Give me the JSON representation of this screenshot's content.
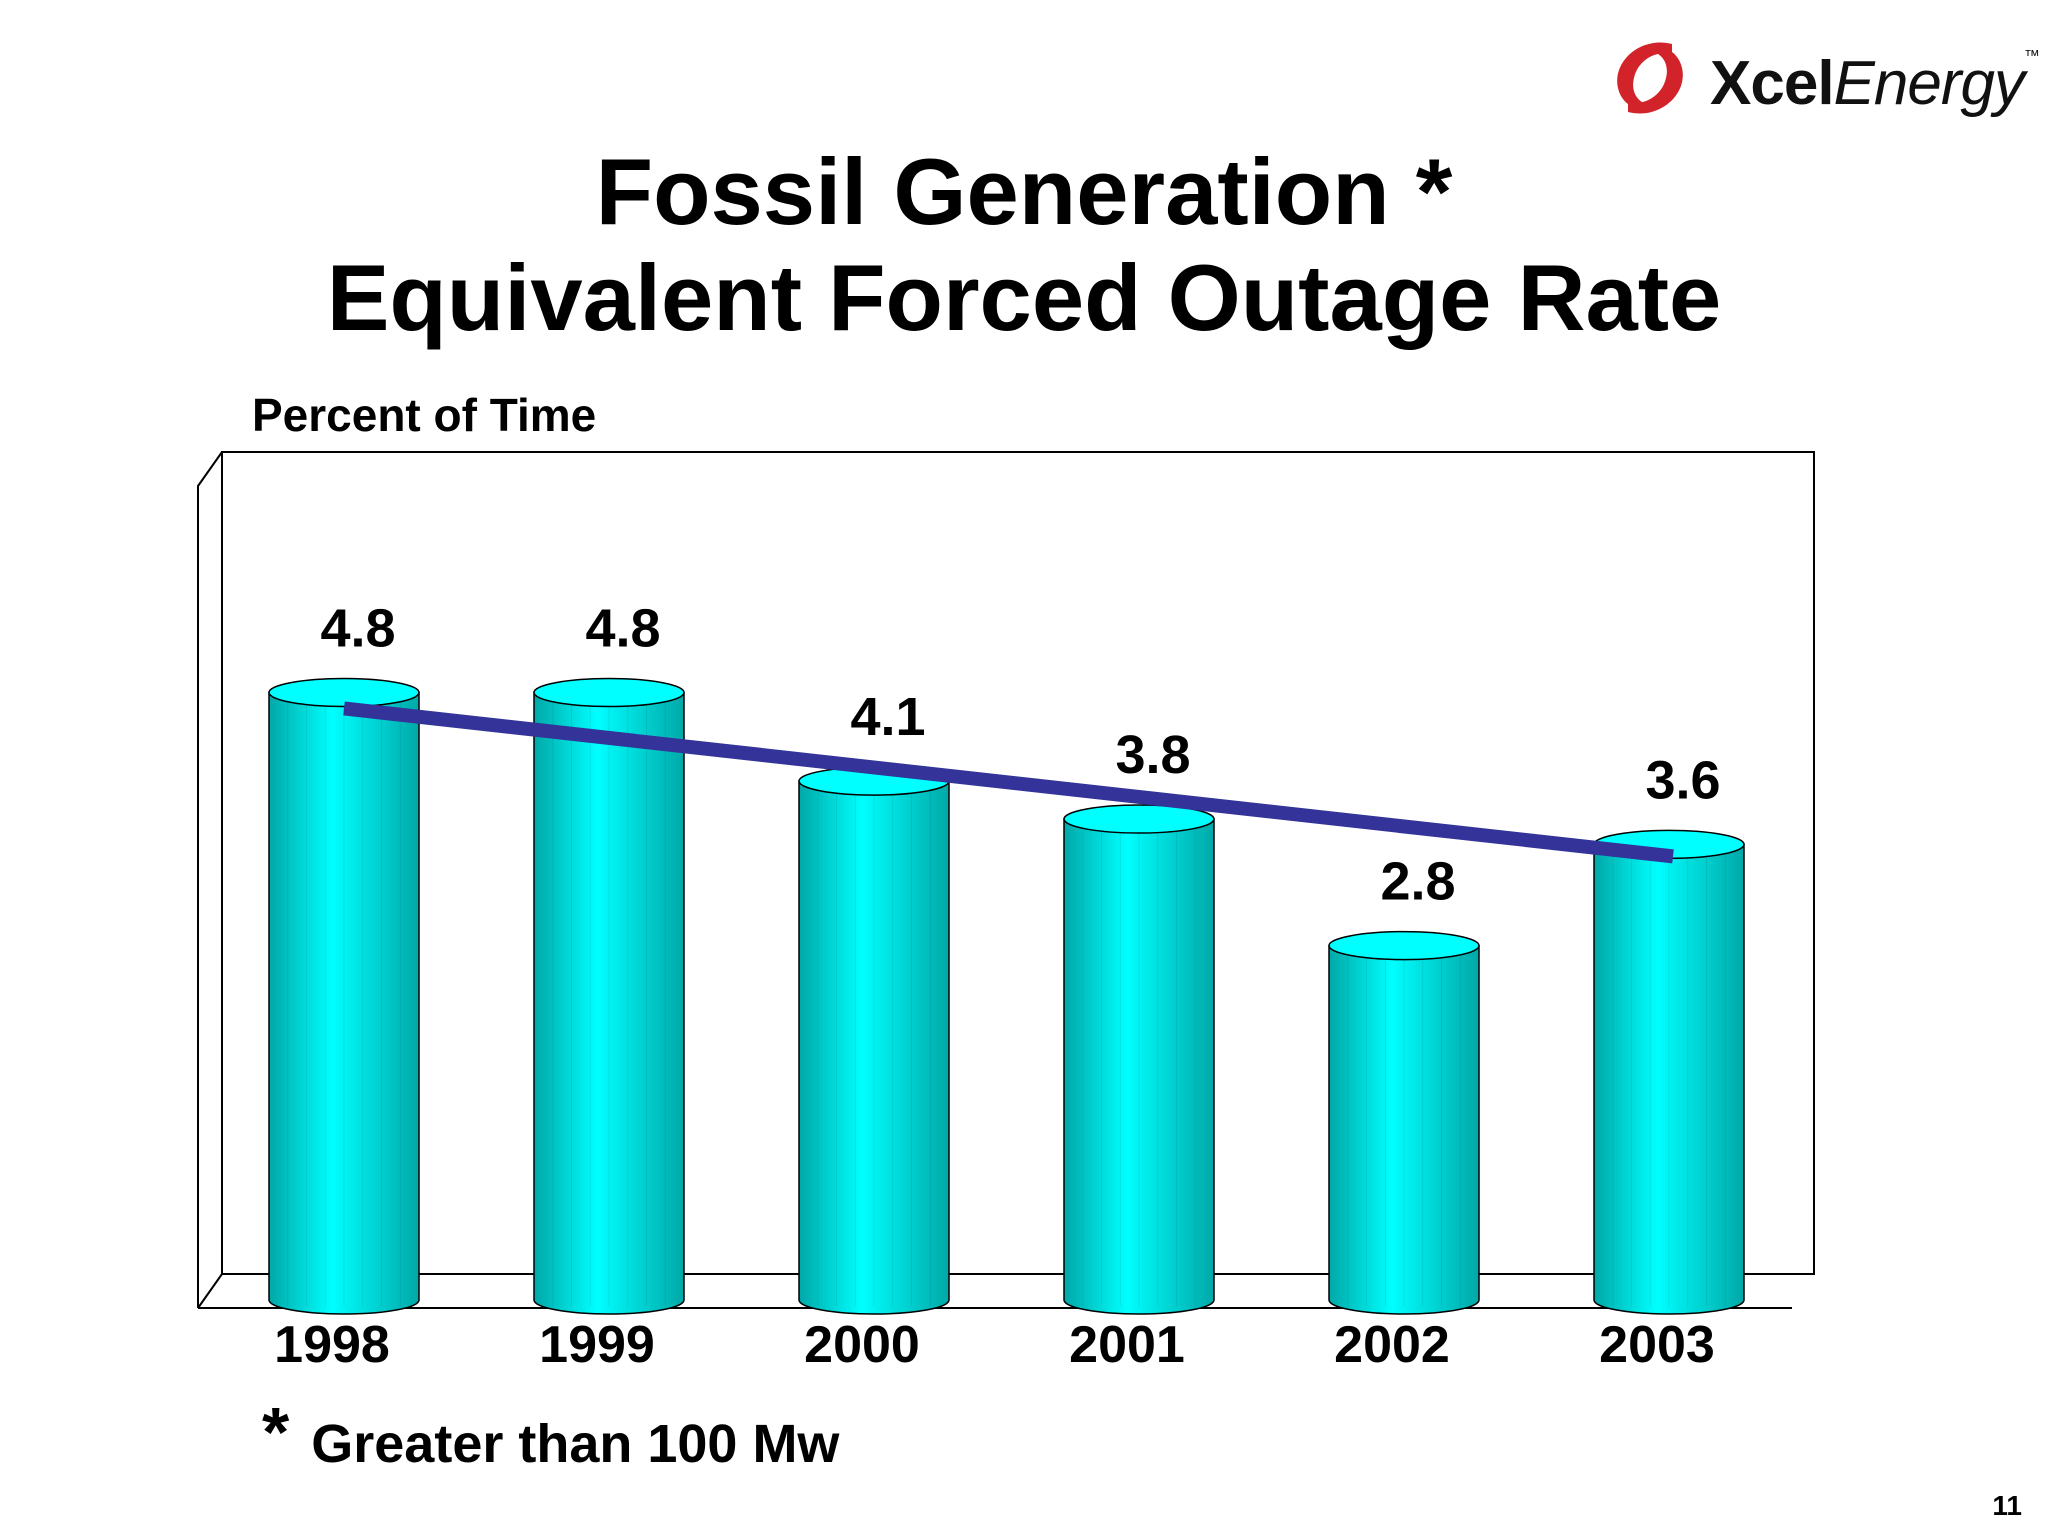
{
  "logo": {
    "brand_bold": "Xcel",
    "brand_light": "Energy",
    "trademark": "™",
    "color": "#d2232a"
  },
  "title": {
    "line1": "Fossil Generation *",
    "line2": "Equivalent Forced Outage Rate"
  },
  "footnote": {
    "marker": "*",
    "text": "Greater than 100 Mw"
  },
  "page_number": "11",
  "colors": {
    "bar_light": "#00ffff",
    "bar_dark": "#00a8a8",
    "trend": "#333399"
  },
  "chart_data": {
    "type": "bar",
    "title": "Fossil Generation * Equivalent Forced Outage Rate",
    "ylabel": "Percent of Time",
    "xlabel": "",
    "categories": [
      "1998",
      "1999",
      "2000",
      "2001",
      "2002",
      "2003"
    ],
    "values": [
      4.8,
      4.8,
      4.1,
      3.8,
      2.8,
      3.6
    ],
    "value_labels": [
      "4.8",
      "4.8",
      "4.1",
      "3.8",
      "2.8",
      "3.6"
    ],
    "ylim": [
      0,
      6.7
    ],
    "grid": false,
    "trendline": {
      "from_category": "1998",
      "to_category": "2003",
      "start": 4.8,
      "end": 3.6
    }
  }
}
